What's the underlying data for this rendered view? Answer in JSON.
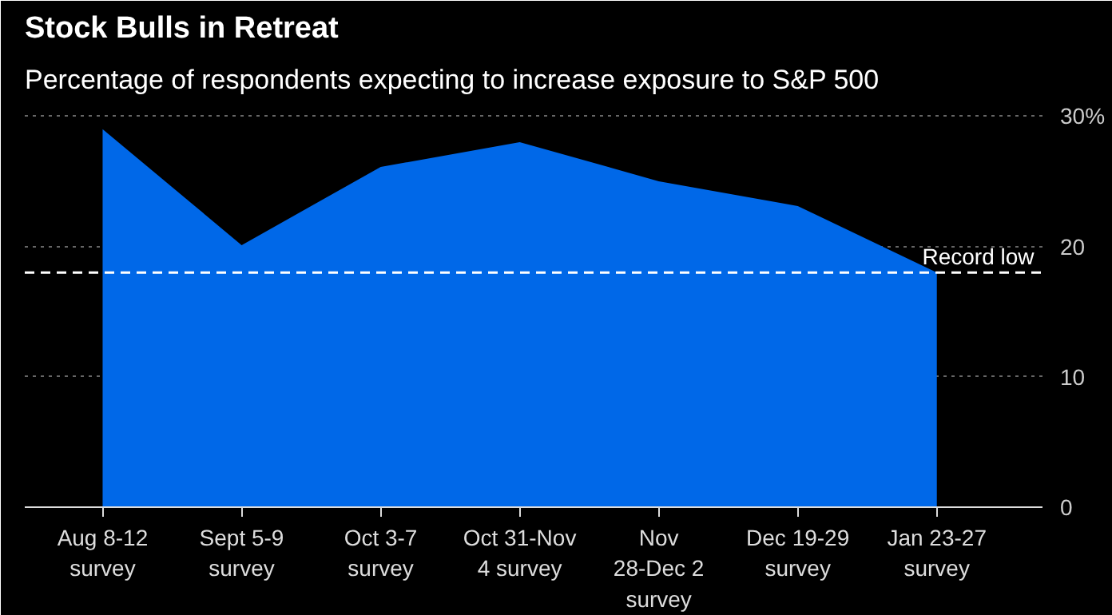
{
  "chart_data": {
    "type": "area",
    "title": "Stock Bulls in Retreat",
    "subtitle": "Percentage of respondents expecting to increase exposure to S&P 500",
    "categories": [
      "Aug 8-12\nsurvey",
      "Sept 5-9\nsurvey",
      "Oct 3-7\nsurvey",
      "Oct 31-Nov\n4 survey",
      "Nov\n28-Dec 2\nsurvey",
      "Dec 19-29\nsurvey",
      "Jan 23-27\nsurvey"
    ],
    "series": [
      {
        "color": "#0068e8",
        "values": [
          29.0,
          20.1,
          26.1,
          28.0,
          25.0,
          23.1,
          18.0
        ]
      }
    ],
    "ylim": [
      0,
      31
    ],
    "yticks": [
      0,
      10,
      20,
      {
        "value": 30,
        "label": "30%"
      }
    ],
    "grid": "y",
    "ref_lines": [
      {
        "axis": "y",
        "value": 18.0,
        "label": "Record low",
        "color": "#ffffff",
        "line_style": "dashed"
      }
    ]
  }
}
